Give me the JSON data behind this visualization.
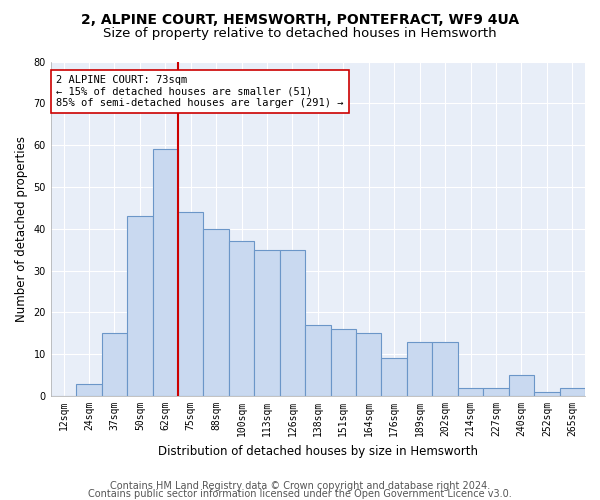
{
  "title1": "2, ALPINE COURT, HEMSWORTH, PONTEFRACT, WF9 4UA",
  "title2": "Size of property relative to detached houses in Hemsworth",
  "xlabel": "Distribution of detached houses by size in Hemsworth",
  "ylabel": "Number of detached properties",
  "footer1": "Contains HM Land Registry data © Crown copyright and database right 2024.",
  "footer2": "Contains public sector information licensed under the Open Government Licence v3.0.",
  "bin_labels": [
    "12sqm",
    "24sqm",
    "37sqm",
    "50sqm",
    "62sqm",
    "75sqm",
    "88sqm",
    "100sqm",
    "113sqm",
    "126sqm",
    "138sqm",
    "151sqm",
    "164sqm",
    "176sqm",
    "189sqm",
    "202sqm",
    "214sqm",
    "227sqm",
    "240sqm",
    "252sqm",
    "265sqm"
  ],
  "bar_heights": [
    0,
    3,
    15,
    43,
    59,
    44,
    40,
    37,
    35,
    35,
    17,
    16,
    15,
    9,
    13,
    13,
    2,
    2,
    5,
    1,
    2
  ],
  "bar_color": "#c9d9f0",
  "bar_edge_color": "#6b96c8",
  "background_color": "#e8eef8",
  "red_line_x": 4.5,
  "red_line_color": "#cc0000",
  "annotation_line1": "2 ALPINE COURT: 73sqm",
  "annotation_line2": "← 15% of detached houses are smaller (51)",
  "annotation_line3": "85% of semi-detached houses are larger (291) →",
  "annotation_box_color": "white",
  "annotation_border_color": "#cc0000",
  "ylim": [
    0,
    80
  ],
  "yticks": [
    0,
    10,
    20,
    30,
    40,
    50,
    60,
    70,
    80
  ],
  "grid_color": "white",
  "title1_fontsize": 10,
  "title2_fontsize": 9.5,
  "xlabel_fontsize": 8.5,
  "ylabel_fontsize": 8.5,
  "tick_fontsize": 7,
  "footer_fontsize": 7,
  "annotation_fontsize": 7.5
}
